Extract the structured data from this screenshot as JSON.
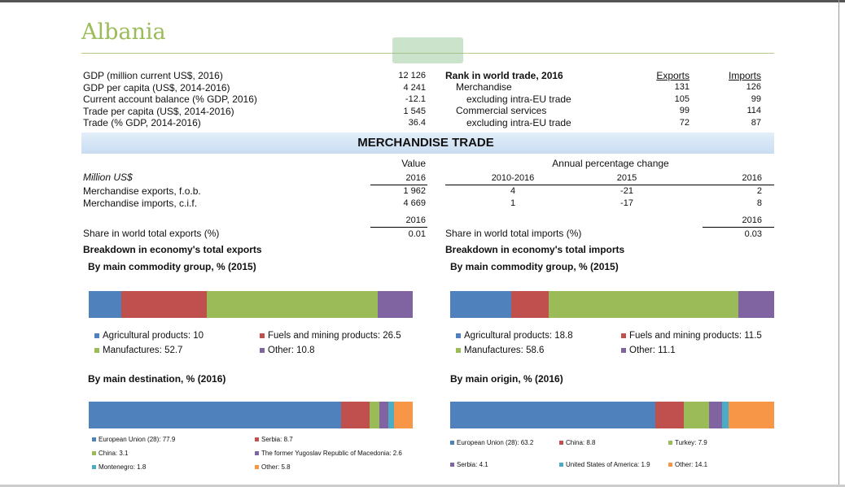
{
  "title": "Albania",
  "colors": {
    "title": "#9bbb59",
    "blue": "#4f81bd",
    "red": "#c0504d",
    "green": "#9bbb59",
    "purple": "#8064a2",
    "teal": "#4bacc6",
    "orange": "#f79646"
  },
  "indicators": [
    {
      "label": "GDP (million current US$, 2016)",
      "value": "12 126"
    },
    {
      "label": "GDP per capita (US$, 2014-2016)",
      "value": "4 241"
    },
    {
      "label": "Current account balance (% GDP, 2016)",
      "value": "-12.1"
    },
    {
      "label": "Trade per capita (US$, 2014-2016)",
      "value": "1 545"
    },
    {
      "label": "Trade (% GDP, 2014-2016)",
      "value": "36.4"
    }
  ],
  "rank": {
    "title": "Rank in world trade, 2016",
    "exports_header": "Exports",
    "imports_header": "Imports",
    "rows": [
      {
        "label": "Merchandise",
        "exports": "131",
        "imports": "126"
      },
      {
        "label": "excluding intra-EU trade",
        "exports": "105",
        "imports": "99"
      },
      {
        "label": "Commercial services",
        "exports": "99",
        "imports": "114"
      },
      {
        "label": "excluding intra-EU trade",
        "exports": "72",
        "imports": "87"
      }
    ]
  },
  "section_title": "MERCHANDISE TRADE",
  "trade": {
    "value_header": "Value",
    "change_header": "Annual percentage change",
    "unit": "Million US$",
    "cols": [
      "2016",
      "2010-2016",
      "2015",
      "2016"
    ],
    "rows": [
      {
        "label": "Merchandise exports, f.o.b.",
        "value": "1 962",
        "c1": "4",
        "c2": "-21",
        "c3": "2"
      },
      {
        "label": "Merchandise imports, c.i.f.",
        "value": "4 669",
        "c1": "1",
        "c2": "-17",
        "c3": "8"
      }
    ],
    "share_exports_label": "Share in world total exports (%)",
    "share_exports_year": "2016",
    "share_exports": "0.01",
    "share_imports_label": "Share in world total imports (%)",
    "share_imports_year": "2016",
    "share_imports": "0.03"
  },
  "exports": {
    "heading": "Breakdown in economy's total exports",
    "commodity_heading": "By main commodity group, % (2015)",
    "destination_heading": "By main destination, % (2016)",
    "commodity": [
      {
        "label": "Agricultural products: 10",
        "value": 10,
        "color": "#4f81bd"
      },
      {
        "label": "Fuels and mining products: 26.5",
        "value": 26.5,
        "color": "#c0504d"
      },
      {
        "label": "Manufactures: 52.7",
        "value": 52.7,
        "color": "#9bbb59"
      },
      {
        "label": "Other: 10.8",
        "value": 10.8,
        "color": "#8064a2"
      }
    ],
    "destination": [
      {
        "label": "European Union (28): 77.9",
        "value": 77.9,
        "color": "#4f81bd"
      },
      {
        "label": "Serbia: 8.7",
        "value": 8.7,
        "color": "#c0504d"
      },
      {
        "label": "China: 3.1",
        "value": 3.1,
        "color": "#9bbb59"
      },
      {
        "label": "The former Yugoslav Republic of Macedonia: 2.6",
        "value": 2.6,
        "color": "#8064a2"
      },
      {
        "label": "Montenegro: 1.8",
        "value": 1.8,
        "color": "#4bacc6"
      },
      {
        "label": "Other: 5.8",
        "value": 5.8,
        "color": "#f79646"
      }
    ]
  },
  "imports": {
    "heading": "Breakdown in economy's total imports",
    "commodity_heading": "By main commodity group, % (2015)",
    "origin_heading": "By main origin, % (2016)",
    "commodity": [
      {
        "label": "Agricultural products: 18.8",
        "value": 18.8,
        "color": "#4f81bd"
      },
      {
        "label": "Fuels and mining products: 11.5",
        "value": 11.5,
        "color": "#c0504d"
      },
      {
        "label": "Manufactures: 58.6",
        "value": 58.6,
        "color": "#9bbb59"
      },
      {
        "label": "Other: 11.1",
        "value": 11.1,
        "color": "#8064a2"
      }
    ],
    "origin": [
      {
        "label": "European Union (28): 63.2",
        "value": 63.2,
        "color": "#4f81bd"
      },
      {
        "label": "China: 8.8",
        "value": 8.8,
        "color": "#c0504d"
      },
      {
        "label": "Turkey: 7.9",
        "value": 7.9,
        "color": "#9bbb59"
      },
      {
        "label": "Serbia: 4.1",
        "value": 4.1,
        "color": "#8064a2"
      },
      {
        "label": "United States of America: 1.9",
        "value": 1.9,
        "color": "#4bacc6"
      },
      {
        "label": "Other: 14.1",
        "value": 14.1,
        "color": "#f79646"
      }
    ]
  }
}
